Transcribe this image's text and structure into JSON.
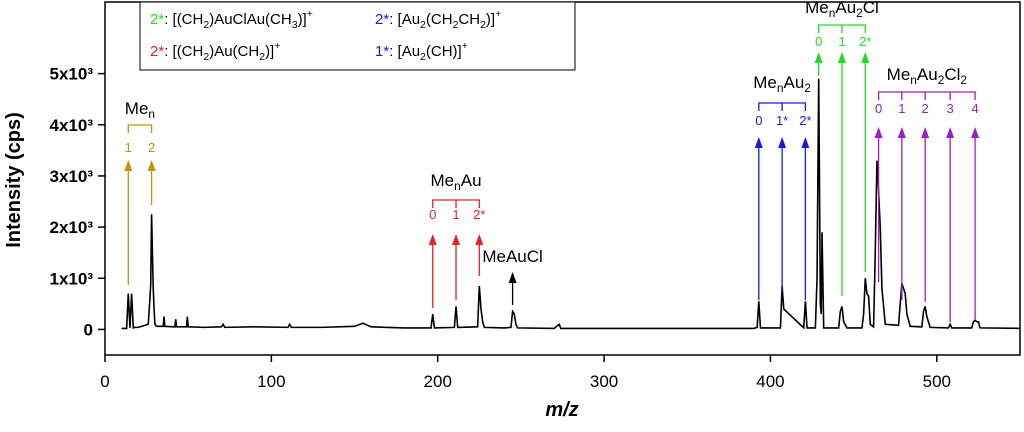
{
  "chart_data": {
    "type": "line",
    "x_label": "m/z",
    "y_label": "Intensity (cps)",
    "xlim": [
      0,
      550
    ],
    "xticks": [
      0,
      100,
      200,
      300,
      400,
      500
    ],
    "ylim": [
      -500,
      6400
    ],
    "yticks": [
      0,
      {
        "value": 1000,
        "label": "1x10³"
      },
      {
        "value": 2000,
        "label": "2x10³"
      },
      {
        "value": 3000,
        "label": "3x10³"
      },
      {
        "value": 4000,
        "label": "4x10³"
      },
      {
        "value": 5000,
        "label": "5x10³"
      }
    ],
    "series": [
      {
        "color": "#000000",
        "x": [
          10,
          13,
          14,
          15,
          16,
          17,
          18,
          20,
          26,
          27,
          27.5,
          28,
          28.5,
          29,
          29.5,
          30,
          31,
          35,
          35.5,
          36,
          42,
          42.5,
          43,
          49,
          49.5,
          50,
          60,
          70,
          71,
          72,
          90,
          110,
          111,
          112,
          130,
          150,
          155,
          160,
          180,
          196,
          197,
          198,
          210,
          211,
          212,
          224,
          225,
          226,
          227,
          228,
          240,
          244,
          245,
          246,
          247,
          248,
          270,
          273,
          274,
          300,
          350,
          390,
          392,
          393,
          394,
          406,
          407,
          408,
          420,
          421,
          422,
          427,
          428,
          429,
          430,
          430.5,
          431,
          432,
          441,
          442,
          443,
          444,
          446,
          455,
          456,
          457,
          458,
          459,
          460,
          462,
          463,
          464,
          465,
          466,
          467,
          469,
          477,
          478,
          479,
          480,
          481,
          482,
          484,
          491,
          492,
          493,
          494,
          496,
          507,
          508,
          509,
          521,
          522,
          523,
          524,
          525,
          526,
          550
        ],
        "values": [
          20,
          20,
          700,
          30,
          700,
          30,
          40,
          40,
          100,
          600,
          900,
          2250,
          1500,
          800,
          400,
          100,
          60,
          60,
          250,
          60,
          50,
          200,
          50,
          50,
          250,
          50,
          40,
          50,
          100,
          40,
          50,
          40,
          100,
          40,
          40,
          60,
          120,
          50,
          30,
          30,
          300,
          30,
          40,
          450,
          40,
          50,
          850,
          400,
          150,
          40,
          30,
          40,
          350,
          300,
          100,
          30,
          20,
          100,
          20,
          20,
          20,
          20,
          40,
          550,
          30,
          30,
          850,
          400,
          30,
          550,
          30,
          30,
          1000,
          4900,
          500,
          300,
          1900,
          30,
          30,
          350,
          450,
          150,
          30,
          30,
          300,
          1000,
          700,
          650,
          100,
          50,
          1500,
          3300,
          2700,
          2000,
          800,
          100,
          80,
          500,
          900,
          800,
          700,
          300,
          60,
          50,
          350,
          450,
          250,
          40,
          30,
          100,
          30,
          30,
          150,
          180,
          150,
          150,
          30,
          20
        ]
      }
    ],
    "legend": [
      {
        "color": "#22dd22",
        "key": "2*",
        "parts": [
          {
            "text": ": [(CH"
          },
          {
            "text": "2",
            "sub": true
          },
          {
            "text": ")AuClAu(CH"
          },
          {
            "text": "3",
            "sub": true
          },
          {
            "text": ")]"
          },
          {
            "text": "+",
            "sup": true
          }
        ]
      },
      {
        "color": "#1a1adc",
        "key": "2*",
        "parts": [
          {
            "text": ": [Au"
          },
          {
            "text": "2",
            "sub": true
          },
          {
            "text": "(CH"
          },
          {
            "text": "2",
            "sub": true
          },
          {
            "text": "CH"
          },
          {
            "text": "2",
            "sub": true
          },
          {
            "text": ")]"
          },
          {
            "text": "+",
            "sup": true
          }
        ]
      },
      {
        "color": "#e8202a",
        "key": "2*",
        "parts": [
          {
            "text": ": [(CH"
          },
          {
            "text": "2",
            "sub": true
          },
          {
            "text": ")Au(CH"
          },
          {
            "text": "2",
            "sub": true
          },
          {
            "text": ")]"
          },
          {
            "text": "+",
            "sup": true
          }
        ]
      },
      {
        "color": "#1a1adc",
        "key": "1*",
        "parts": [
          {
            "text": ": [Au"
          },
          {
            "text": "2",
            "sub": true
          },
          {
            "text": "(CH)]"
          },
          {
            "text": "+",
            "sup": true
          }
        ]
      }
    ],
    "annotations": [
      {
        "color": "#c8900a",
        "label": [
          {
            "text": "Me"
          },
          {
            "text": "n",
            "sub": true
          }
        ],
        "arrows": [
          {
            "x": 14,
            "label": "1"
          },
          {
            "x": 28,
            "label": "2"
          }
        ]
      },
      {
        "color": "#e8202a",
        "label": [
          {
            "text": "Me"
          },
          {
            "text": "n",
            "sub": true
          },
          {
            "text": "Au"
          }
        ],
        "arrows": [
          {
            "x": 197,
            "label": "0"
          },
          {
            "x": 211,
            "label": "1"
          },
          {
            "x": 225,
            "label": "2*"
          }
        ]
      },
      {
        "color": "#000000",
        "label": [
          {
            "text": "MeAuCl"
          }
        ],
        "arrows": [
          {
            "x": 245
          }
        ]
      },
      {
        "color": "#1a1adc",
        "label": [
          {
            "text": "Me"
          },
          {
            "text": "n",
            "sub": true
          },
          {
            "text": "Au"
          },
          {
            "text": "2",
            "sub": true
          }
        ],
        "arrows": [
          {
            "x": 393,
            "label": "0"
          },
          {
            "x": 407,
            "label": "1*"
          },
          {
            "x": 421,
            "label": "2*"
          }
        ]
      },
      {
        "color": "#22dd22",
        "label": [
          {
            "text": "Me"
          },
          {
            "text": "n",
            "sub": true
          },
          {
            "text": "Au"
          },
          {
            "text": "2",
            "sub": true
          },
          {
            "text": "Cl"
          }
        ],
        "arrows": [
          {
            "x": 429,
            "label": "0"
          },
          {
            "x": 443,
            "label": "1"
          },
          {
            "x": 457,
            "label": "2*"
          }
        ]
      },
      {
        "color": "#9a20c0",
        "label": [
          {
            "text": "Me"
          },
          {
            "text": "n",
            "sub": true
          },
          {
            "text": "Au"
          },
          {
            "text": "2",
            "sub": true
          },
          {
            "text": "Cl"
          },
          {
            "text": "2",
            "sub": true
          }
        ],
        "arrows": [
          {
            "x": 465,
            "label": "0"
          },
          {
            "x": 479,
            "label": "1"
          },
          {
            "x": 493,
            "label": "2"
          },
          {
            "x": 508,
            "label": "3"
          },
          {
            "x": 523,
            "label": "4"
          }
        ]
      }
    ]
  }
}
